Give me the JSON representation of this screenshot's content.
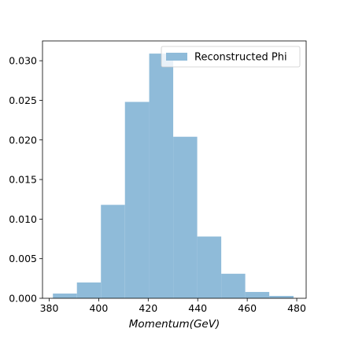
{
  "chart_data": {
    "type": "bar",
    "subtype": "histogram",
    "title": "",
    "xlabel": "Momentum(GeV)",
    "ylabel": "",
    "xlim": [
      377.3,
      483.8
    ],
    "ylim": [
      0,
      0.0325
    ],
    "xticks": [
      380,
      400,
      420,
      440,
      460,
      480
    ],
    "xtick_labels": [
      "380",
      "400",
      "420",
      "440",
      "460",
      "480"
    ],
    "yticks": [
      0.0,
      0.005,
      0.01,
      0.015,
      0.02,
      0.025,
      0.03
    ],
    "ytick_labels": [
      "0.000",
      "0.005",
      "0.010",
      "0.015",
      "0.020",
      "0.025",
      "0.030"
    ],
    "legend_position": "top-right",
    "grid": false,
    "series": [
      {
        "name": "Reconstructed Phi",
        "color": "#8fbbd9",
        "bin_edges": [
          381.5,
          391.2,
          400.9,
          410.6,
          420.4,
          430.1,
          439.8,
          449.5,
          459.2,
          468.9,
          478.7
        ],
        "values": [
          0.0006,
          0.002,
          0.0118,
          0.0248,
          0.0309,
          0.0204,
          0.0078,
          0.0031,
          0.0008,
          0.0003
        ]
      }
    ]
  }
}
